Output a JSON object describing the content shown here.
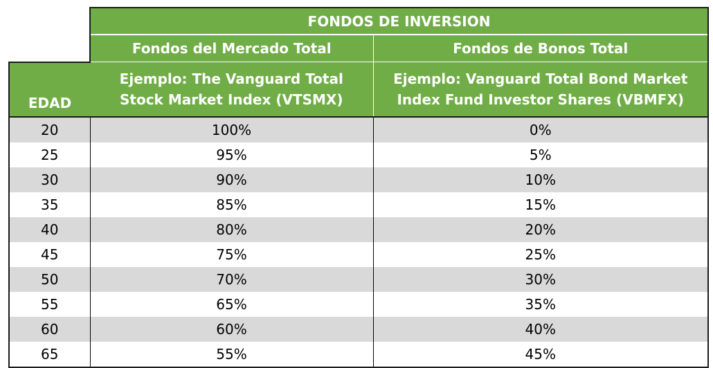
{
  "table": {
    "title": "FONDOS DE INVERSION",
    "columns": {
      "age": "EDAD",
      "stock_fund": "Fondos del Mercado Total",
      "bond_fund": "Fondos de Bonos Total"
    },
    "examples": {
      "stock_line1": "Ejemplo: The Vanguard Total",
      "stock_line2": "Stock Market Index (VTSMX)",
      "bond_line1": "Ejemplo: Vanguard Total Bond Market",
      "bond_line2": "Index Fund Investor Shares (VBMFX)"
    },
    "rows": [
      {
        "age": "20",
        "stock": "100%",
        "bond": "0%"
      },
      {
        "age": "25",
        "stock": "95%",
        "bond": "5%"
      },
      {
        "age": "30",
        "stock": "90%",
        "bond": "10%"
      },
      {
        "age": "35",
        "stock": "85%",
        "bond": "15%"
      },
      {
        "age": "40",
        "stock": "80%",
        "bond": "20%"
      },
      {
        "age": "45",
        "stock": "75%",
        "bond": "25%"
      },
      {
        "age": "50",
        "stock": "70%",
        "bond": "30%"
      },
      {
        "age": "55",
        "stock": "65%",
        "bond": "35%"
      },
      {
        "age": "60",
        "stock": "60%",
        "bond": "40%"
      },
      {
        "age": "65",
        "stock": "55%",
        "bond": "45%"
      }
    ],
    "colors": {
      "header_green": "#70ad47",
      "row_shade": "#d9d9d9",
      "row_plain": "#ffffff"
    }
  }
}
